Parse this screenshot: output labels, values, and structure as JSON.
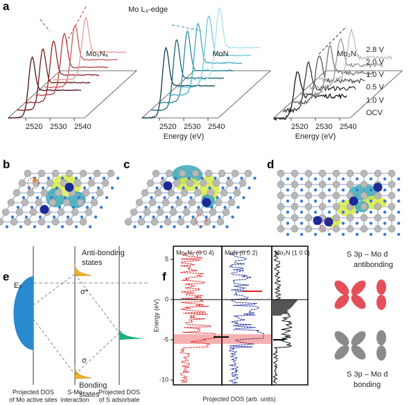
{
  "panel_labels": [
    "a",
    "b",
    "c",
    "d",
    "e",
    "f"
  ],
  "panel_a": {
    "edge_label": "Mo L₃-edge",
    "materials": [
      "Mo₅N₆",
      "MoN",
      "Mo₂N"
    ],
    "x_ticks": [
      "2520",
      "2530",
      "2540"
    ],
    "x_label": "Energy (eV)",
    "voltages": [
      "2.8 V",
      "2.0 V",
      "1.0 V",
      "0.5 V",
      "1.0 V",
      "OCV"
    ]
  },
  "panel_e": {
    "fermi": {
      "main": "E",
      "sub": "F"
    },
    "antibonding": [
      "Anti-bonding",
      "states"
    ],
    "sigma_star": "σ*",
    "sigma": "σ",
    "bonding": [
      "Bonding",
      "states"
    ],
    "bottom_labels": [
      [
        "Projected DOS",
        "of Mo active sites"
      ],
      [
        "S-Mo",
        "interaction"
      ],
      [
        "Projected DOS",
        "of S adsorbate"
      ]
    ]
  },
  "panel_f": {
    "columns": [
      "Mo₅N₆ (0 0 4)",
      "MoN (0 0 2)",
      "Mo₂N (1 0 0)"
    ],
    "y_label": "Energy (eV)",
    "y_ticks": [
      "5",
      "0",
      "-5",
      "-10"
    ],
    "x_label": "Projected DOS (arb. units)",
    "antibonding": [
      "S 3p – Mo d",
      "antibonding"
    ],
    "bonding": [
      "S 3p – Mo d",
      "bonding"
    ]
  }
}
